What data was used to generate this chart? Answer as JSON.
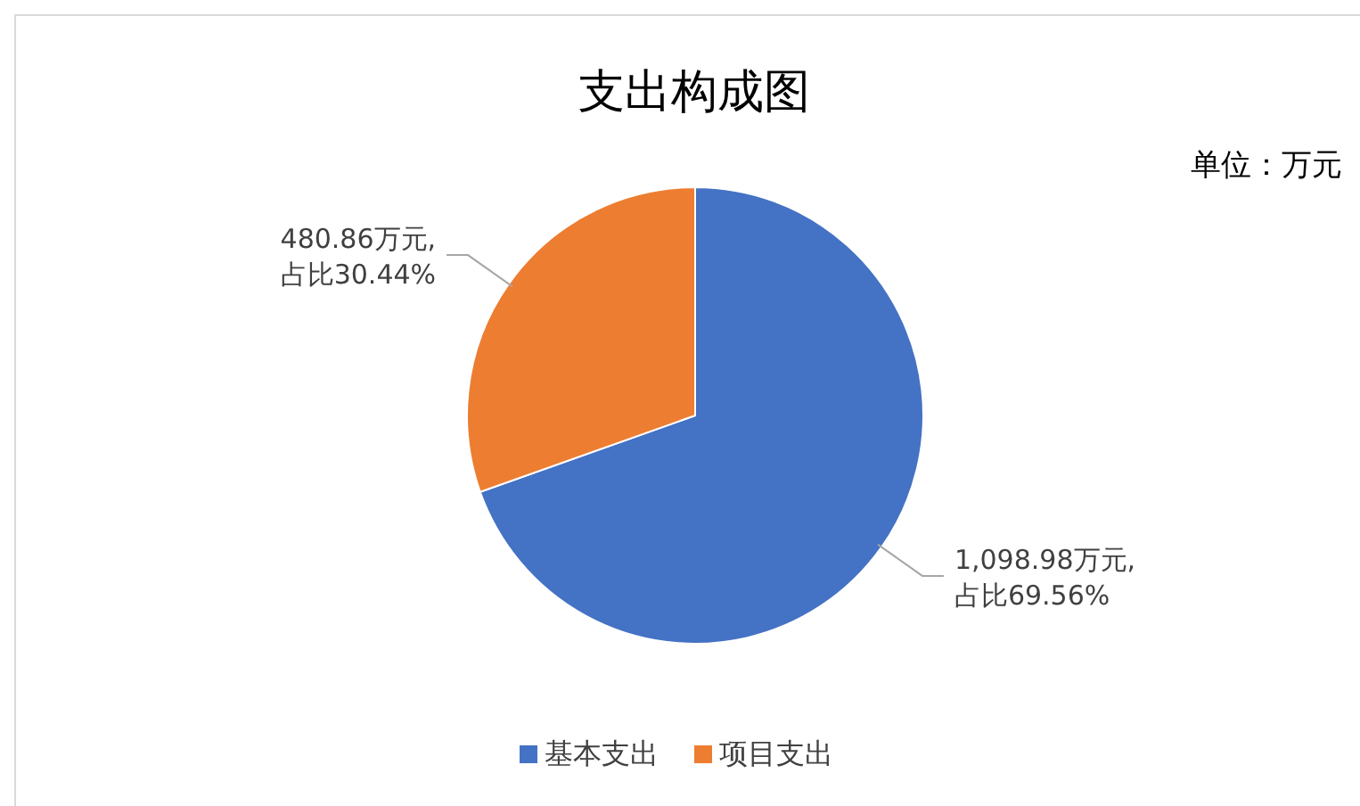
{
  "chart_data": {
    "type": "pie",
    "title": "支出构成图",
    "annotations": [
      "单位：万元"
    ],
    "categories": [
      "基本支出",
      "项目支出"
    ],
    "values": [
      1098.98,
      480.86
    ],
    "colors": [
      "#4472c4",
      "#ed7d31"
    ],
    "value_labels": [
      "1,098.98万元, 占比69.56%",
      "480.86万元, 占比30.44%"
    ],
    "legend": "bottom"
  }
}
